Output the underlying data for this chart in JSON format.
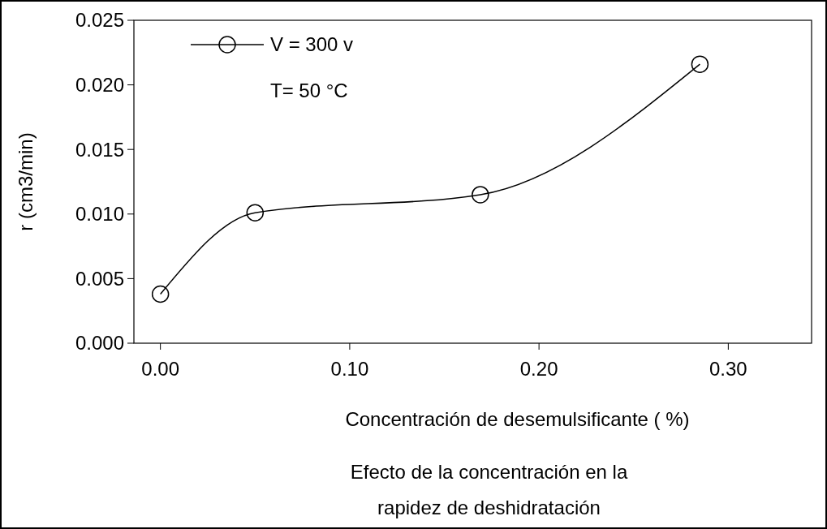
{
  "chart_data": {
    "type": "line",
    "xlabel": "Concentración de desemulsificante   ( %)",
    "ylabel": "r  (cm3/min)",
    "x": [
      0,
      0.05,
      0.169,
      0.285
    ],
    "series": [
      {
        "name": "V = 300 v",
        "color": "#000000",
        "values": [
          0.0038,
          0.0101,
          0.0115,
          0.0216
        ]
      }
    ],
    "xlim": [
      -0.014,
      0.344
    ],
    "xticks": [
      {
        "value": 0,
        "label": "0.00"
      },
      {
        "value": 0.1,
        "label": "0.10"
      },
      {
        "value": 0.2,
        "label": "0.20"
      },
      {
        "value": 0.3,
        "label": "0.30"
      }
    ],
    "ylim": [
      0,
      0.025
    ],
    "yticks": [
      {
        "value": 0,
        "label": "0.000"
      },
      {
        "value": 0.005,
        "label": "0.005"
      },
      {
        "value": 0.01,
        "label": "0.010"
      },
      {
        "value": 0.015,
        "label": "0.015"
      },
      {
        "value": 0.02,
        "label": "0.020"
      },
      {
        "value": 0.025,
        "label": "0.025"
      }
    ],
    "grid": false,
    "legend": "top left",
    "marker": "circle",
    "line_style": "solid",
    "annotations": [
      "T= 50 °C",
      "Efecto de la concentración en la rapidez de deshidratación"
    ]
  }
}
